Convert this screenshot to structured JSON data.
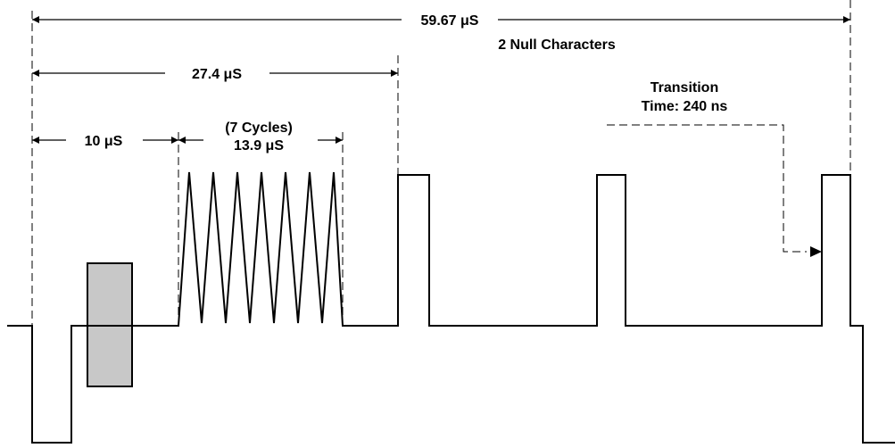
{
  "labels": {
    "total_time": "59.67 μS",
    "null_characters": "2 Null Characters",
    "time_27": "27.4 μS",
    "time_10": "10 μS",
    "cycles_line1": "(7 Cycles)",
    "cycles_line2": "13.9 μS",
    "transition_line1": "Transition",
    "transition_line2": "Time: 240 ns"
  },
  "colors": {
    "line": "#000000",
    "block_fill": "#c8c8c8"
  }
}
